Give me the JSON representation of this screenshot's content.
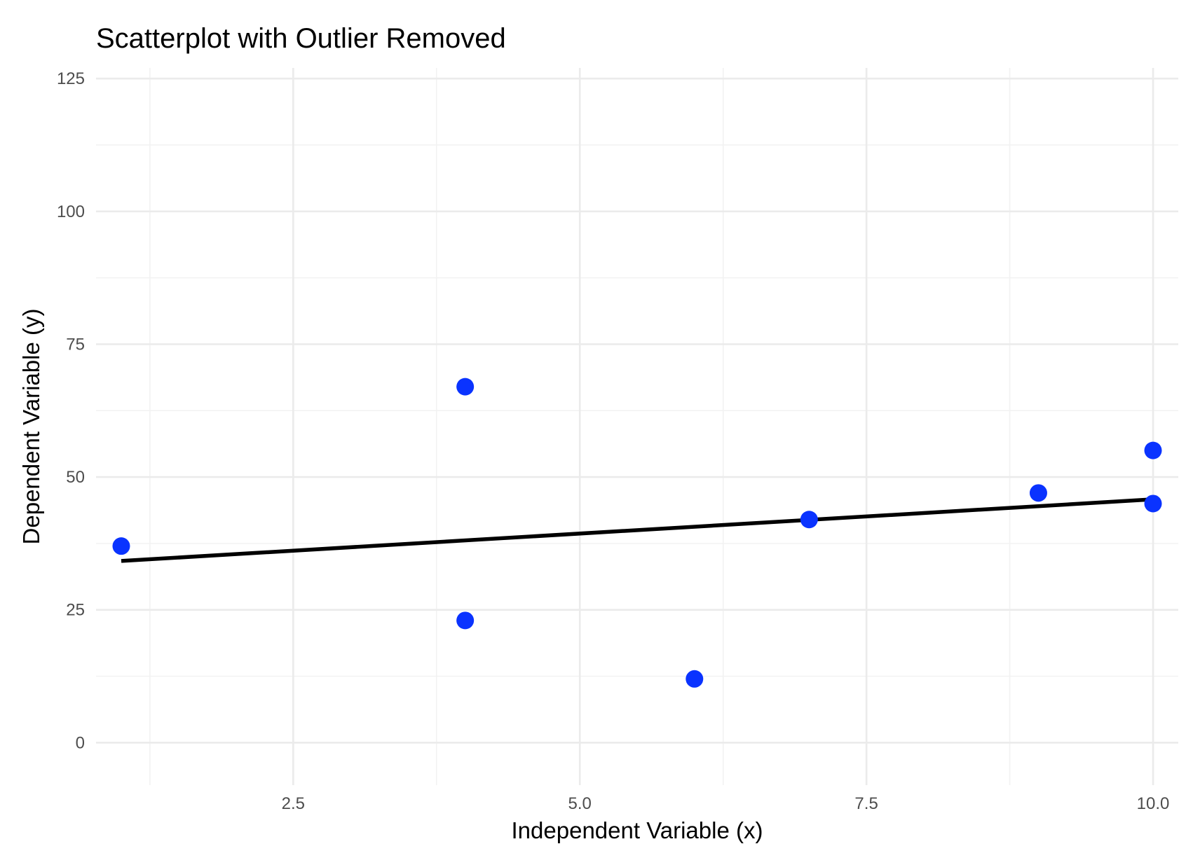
{
  "chart_data": {
    "type": "scatter",
    "title": "Scatterplot with Outlier Removed",
    "xlabel": "Independent Variable (x)",
    "ylabel": "Dependent Variable (y)",
    "xlim": [
      0.78,
      10.22
    ],
    "ylim": [
      -8,
      127
    ],
    "x_ticks": [
      2.5,
      5.0,
      7.5,
      10.0
    ],
    "x_tick_labels": [
      "2.5",
      "5.0",
      "7.5",
      "10.0"
    ],
    "x_minor_ticks": [
      1.25,
      3.75,
      6.25,
      8.75
    ],
    "y_ticks": [
      0,
      25,
      50,
      75,
      100,
      125
    ],
    "y_tick_labels": [
      "0",
      "25",
      "50",
      "75",
      "100",
      "125"
    ],
    "y_minor_ticks": [
      12.5,
      37.5,
      62.5,
      87.5,
      112.5
    ],
    "grid": true,
    "series": [
      {
        "type": "scatter",
        "color": "#0a33ff",
        "points": [
          {
            "x": 1,
            "y": 37
          },
          {
            "x": 4,
            "y": 67
          },
          {
            "x": 4,
            "y": 23
          },
          {
            "x": 6,
            "y": 12
          },
          {
            "x": 7,
            "y": 42
          },
          {
            "x": 9,
            "y": 47
          },
          {
            "x": 10,
            "y": 55
          },
          {
            "x": 10,
            "y": 45
          }
        ]
      },
      {
        "type": "line",
        "color": "#000000",
        "points": [
          {
            "x": 1,
            "y": 34.2
          },
          {
            "x": 10,
            "y": 45.8
          }
        ]
      }
    ]
  }
}
